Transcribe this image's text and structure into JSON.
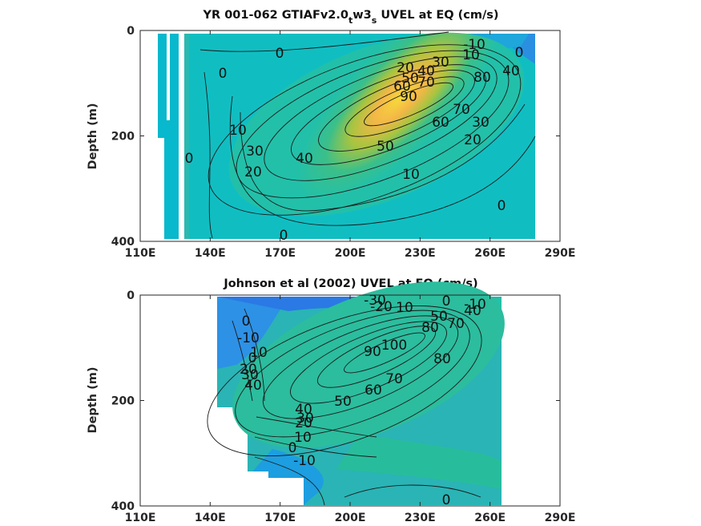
{
  "chart_data": [
    {
      "type": "heatmap",
      "title_main": "YR 001-062 GTIAFv2.0",
      "title_sub": "t",
      "title_mid": "w3",
      "title_sub2": "s",
      "title_end": " UVEL at EQ (cm/s)",
      "ylabel": "Depth (m)",
      "xlim": [
        110,
        290
      ],
      "ylim": [
        0,
        400
      ],
      "x_ticks": [
        "110E",
        "140E",
        "170E",
        "200E",
        "230E",
        "260E",
        "290E"
      ],
      "y_ticks": [
        "0",
        "200",
        "400"
      ],
      "colormap": [
        "#1f83e6",
        "#08b5cf",
        "#45c17e",
        "#aac33c",
        "#f5b83e",
        "#f7d93a"
      ],
      "core": {
        "lon": 235,
        "depth": 115,
        "max": 95
      },
      "contour_labels": [
        {
          "text": "0",
          "lon": 138,
          "depth": 40
        },
        {
          "text": "0",
          "lon": 120,
          "depth": 90
        },
        {
          "text": "10",
          "lon": 113,
          "depth": 190
        },
        {
          "text": "0",
          "lon": 112,
          "depth": 240
        },
        {
          "text": "30",
          "lon": 150,
          "depth": 225
        },
        {
          "text": "20",
          "lon": 150,
          "depth": 260
        },
        {
          "text": "40",
          "lon": 166,
          "depth": 235
        },
        {
          "text": "50",
          "lon": 219,
          "depth": 210
        },
        {
          "text": "10",
          "lon": 238,
          "depth": 270
        },
        {
          "text": "0",
          "lon": 287,
          "depth": 330
        },
        {
          "text": "0",
          "lon": 168,
          "depth": 385
        },
        {
          "text": "20",
          "lon": 230,
          "depth": 75
        },
        {
          "text": "30",
          "lon": 256,
          "depth": 67
        },
        {
          "text": "40",
          "lon": 247,
          "depth": 80
        },
        {
          "text": "50",
          "lon": 233,
          "depth": 90
        },
        {
          "text": "60",
          "lon": 223,
          "depth": 103
        },
        {
          "text": "70",
          "lon": 243,
          "depth": 105
        },
        {
          "text": "90",
          "lon": 222,
          "depth": 133
        },
        {
          "text": "80",
          "lon": 285,
          "depth": 100
        },
        {
          "text": "-10",
          "lon": 292,
          "depth": 27
        },
        {
          "text": "10",
          "lon": 289,
          "depth": 45
        },
        {
          "text": "0",
          "lon": 318,
          "depth": 42
        },
        {
          "text": "40",
          "lon": 316,
          "depth": 88
        },
        {
          "text": "70",
          "lon": 272,
          "depth": 155
        },
        {
          "text": "60",
          "lon": 258,
          "depth": 170
        },
        {
          "text": "30",
          "lon": 290,
          "depth": 175
        },
        {
          "text": "20",
          "lon": 272,
          "depth": 205
        }
      ]
    },
    {
      "type": "heatmap",
      "title": "Johnson et al (2002) UVEL at EQ (cm/s)",
      "ylabel": "Depth (m)",
      "xlim": [
        110,
        290
      ],
      "ylim": [
        0,
        400
      ],
      "x_ticks": [
        "110E",
        "140E",
        "170E",
        "200E",
        "230E",
        "260E",
        "290E"
      ],
      "y_ticks": [
        "0",
        "200",
        "400"
      ],
      "core": {
        "lon": 220,
        "depth": 140,
        "max": 100
      },
      "contour_labels": [
        {
          "text": "-30",
          "lon": 205,
          "depth": 10
        },
        {
          "text": "-20",
          "lon": 200,
          "depth": 20
        },
        {
          "text": "10",
          "lon": 215,
          "depth": 20
        },
        {
          "text": "0",
          "lon": 243,
          "depth": 10
        },
        {
          "text": "-10",
          "lon": 256,
          "depth": 15
        },
        {
          "text": "50",
          "lon": 240,
          "depth": 45
        },
        {
          "text": "40",
          "lon": 257,
          "depth": 30
        },
        {
          "text": "80",
          "lon": 237,
          "depth": 60
        },
        {
          "text": "70",
          "lon": 250,
          "depth": 55
        },
        {
          "text": "0",
          "lon": 147,
          "depth": 50
        },
        {
          "text": "-10",
          "lon": 150,
          "depth": 80
        },
        {
          "text": "0",
          "lon": 153,
          "depth": 115
        },
        {
          "text": "10",
          "lon": 156,
          "depth": 130
        },
        {
          "text": "20",
          "lon": 154,
          "depth": 145
        },
        {
          "text": "30",
          "lon": 155,
          "depth": 160
        },
        {
          "text": "40",
          "lon": 156,
          "depth": 175
        },
        {
          "text": "90",
          "lon": 207,
          "depth": 110
        },
        {
          "text": "100",
          "lon": 217,
          "depth": 100
        },
        {
          "text": "70",
          "lon": 217,
          "depth": 155
        },
        {
          "text": "80",
          "lon": 244,
          "depth": 120
        },
        {
          "text": "60",
          "lon": 201,
          "depth": 175
        },
        {
          "text": "50",
          "lon": 182,
          "depth": 195
        },
        {
          "text": "40",
          "lon": 164,
          "depth": 220
        },
        {
          "text": "30",
          "lon": 166,
          "depth": 240
        },
        {
          "text": "20",
          "lon": 164,
          "depth": 255
        },
        {
          "text": "10",
          "lon": 163,
          "depth": 270
        },
        {
          "text": "0",
          "lon": 160,
          "depth": 290
        },
        {
          "text": "-10",
          "lon": 165,
          "depth": 305
        },
        {
          "text": "0",
          "lon": 226,
          "depth": 385
        }
      ]
    }
  ]
}
